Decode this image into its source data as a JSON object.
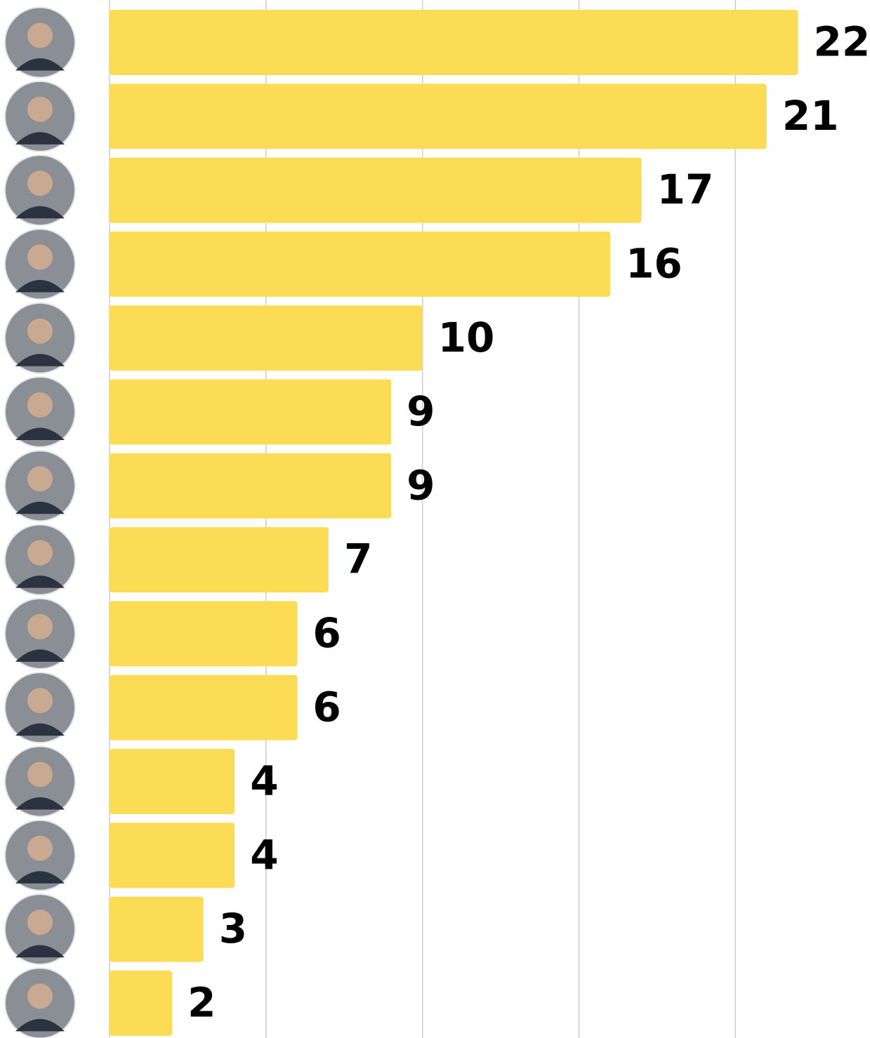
{
  "chart_data": {
    "type": "bar",
    "orientation": "horizontal",
    "categories": [
      null,
      null,
      null,
      null,
      null,
      null,
      null,
      null,
      null,
      null,
      null,
      null,
      null,
      null
    ],
    "values": [
      22,
      21,
      17,
      16,
      10,
      9,
      9,
      7,
      6,
      6,
      4,
      4,
      3,
      2
    ],
    "color": "#fddc55",
    "xlim": [
      0,
      24.3
    ],
    "xticks": [
      0,
      5,
      10,
      15,
      20
    ],
    "grid": true
  }
}
